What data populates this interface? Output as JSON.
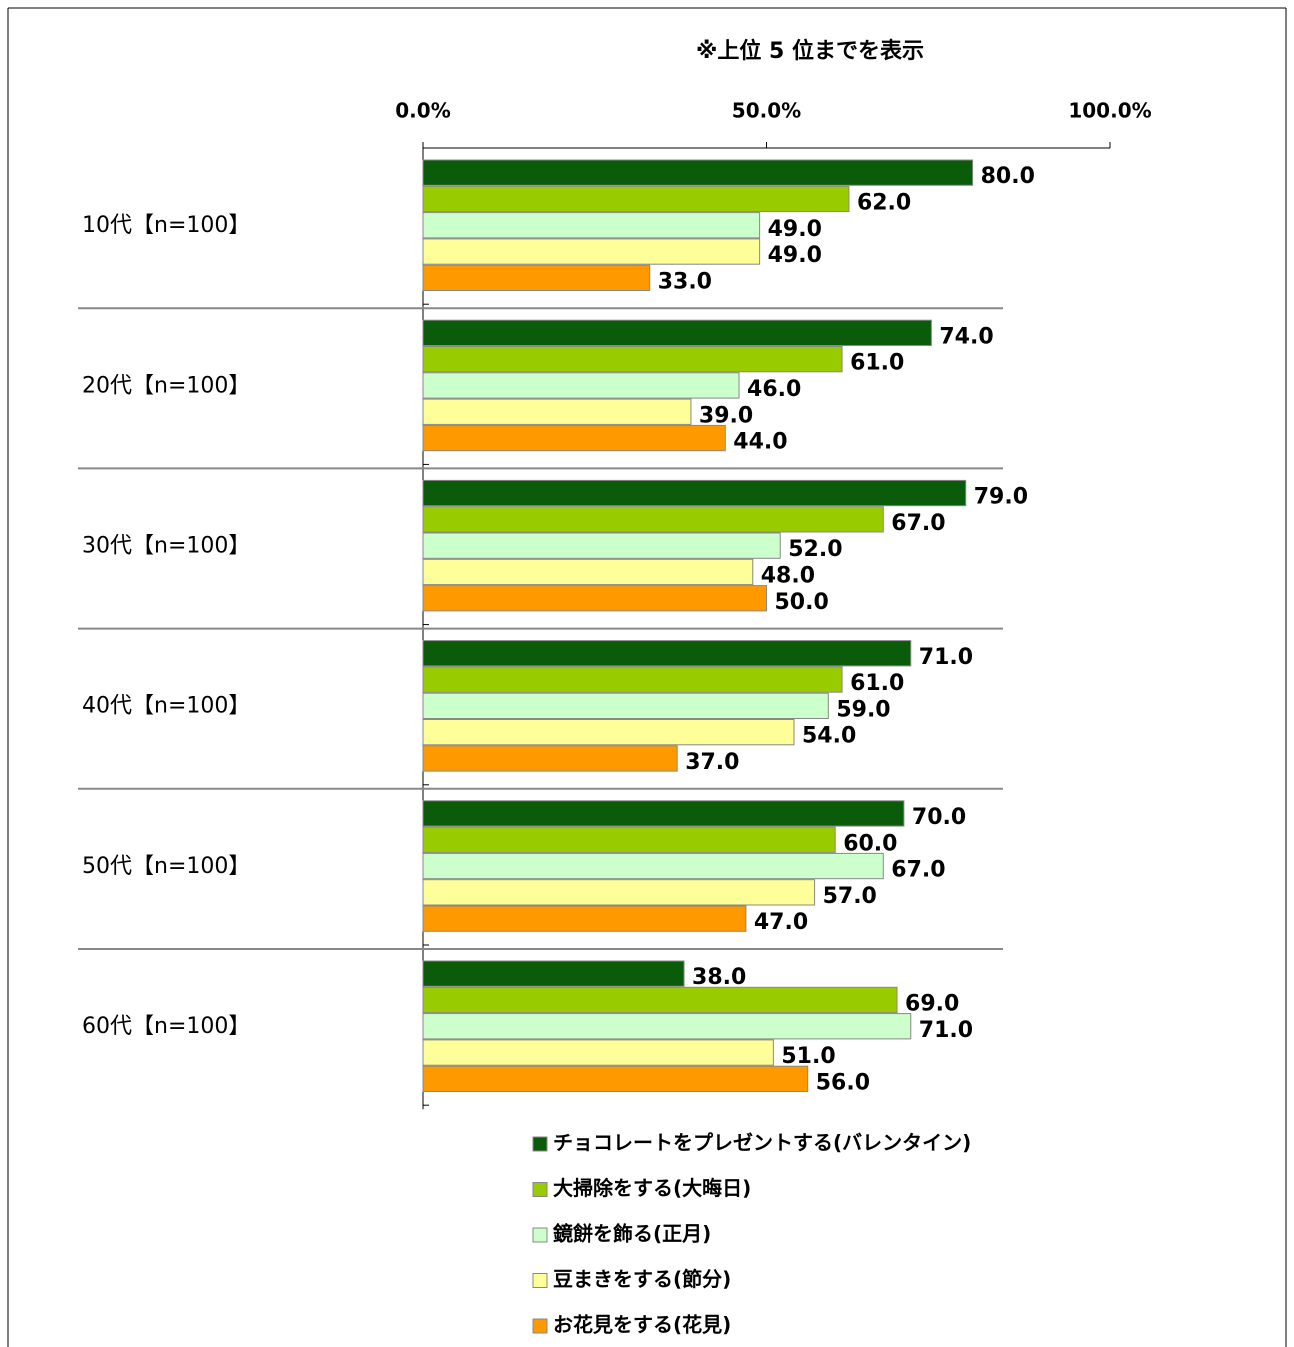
{
  "chart_data": {
    "type": "bar",
    "orientation": "horizontal",
    "title": "※上位 5 位までを表示",
    "categories": [
      "10代【n=100】",
      "20代【n=100】",
      "30代【n=100】",
      "40代【n=100】",
      "50代【n=100】",
      "60代【n=100】"
    ],
    "series": [
      {
        "name": "チョコレートをプレゼントする(バレンタイン)",
        "color": "#0a5c0a",
        "values": [
          80,
          74,
          79,
          71,
          70,
          38
        ],
        "value_labels": [
          "80.0",
          "74.0",
          "79.0",
          "71.0",
          "70.0",
          "38.0"
        ]
      },
      {
        "name": "大掃除をする(大晦日)",
        "color": "#99cc00",
        "values": [
          62,
          61,
          67,
          61,
          60,
          69
        ],
        "value_labels": [
          "62.0",
          "61.0",
          "67.0",
          "61.0",
          "60.0",
          "69.0"
        ]
      },
      {
        "name": "鏡餅を飾る(正月)",
        "color": "#ccffcc",
        "values": [
          49,
          46,
          52,
          59,
          67,
          71
        ],
        "value_labels": [
          "49.0",
          "46.0",
          "52.0",
          "59.0",
          "67.0",
          "71.0"
        ]
      },
      {
        "name": "豆まきをする(節分)",
        "color": "#ffff99",
        "values": [
          49,
          39,
          48,
          54,
          57,
          51
        ],
        "value_labels": [
          "49.0",
          "39.0",
          "48.0",
          "54.0",
          "57.0",
          "51.0"
        ]
      },
      {
        "name": "お花見をする(花見)",
        "color": "#ff9900",
        "values": [
          33,
          44,
          50,
          37,
          47,
          56
        ],
        "value_labels": [
          "33.0",
          "44.0",
          "50.0",
          "37.0",
          "47.0",
          "56.0"
        ]
      }
    ],
    "xlim": [
      0,
      100
    ],
    "xticks": [
      {
        "value": 0,
        "label": "0.0%"
      },
      {
        "value": 50,
        "label": "50.0%"
      },
      {
        "value": 100,
        "label": "100.0%"
      }
    ]
  }
}
